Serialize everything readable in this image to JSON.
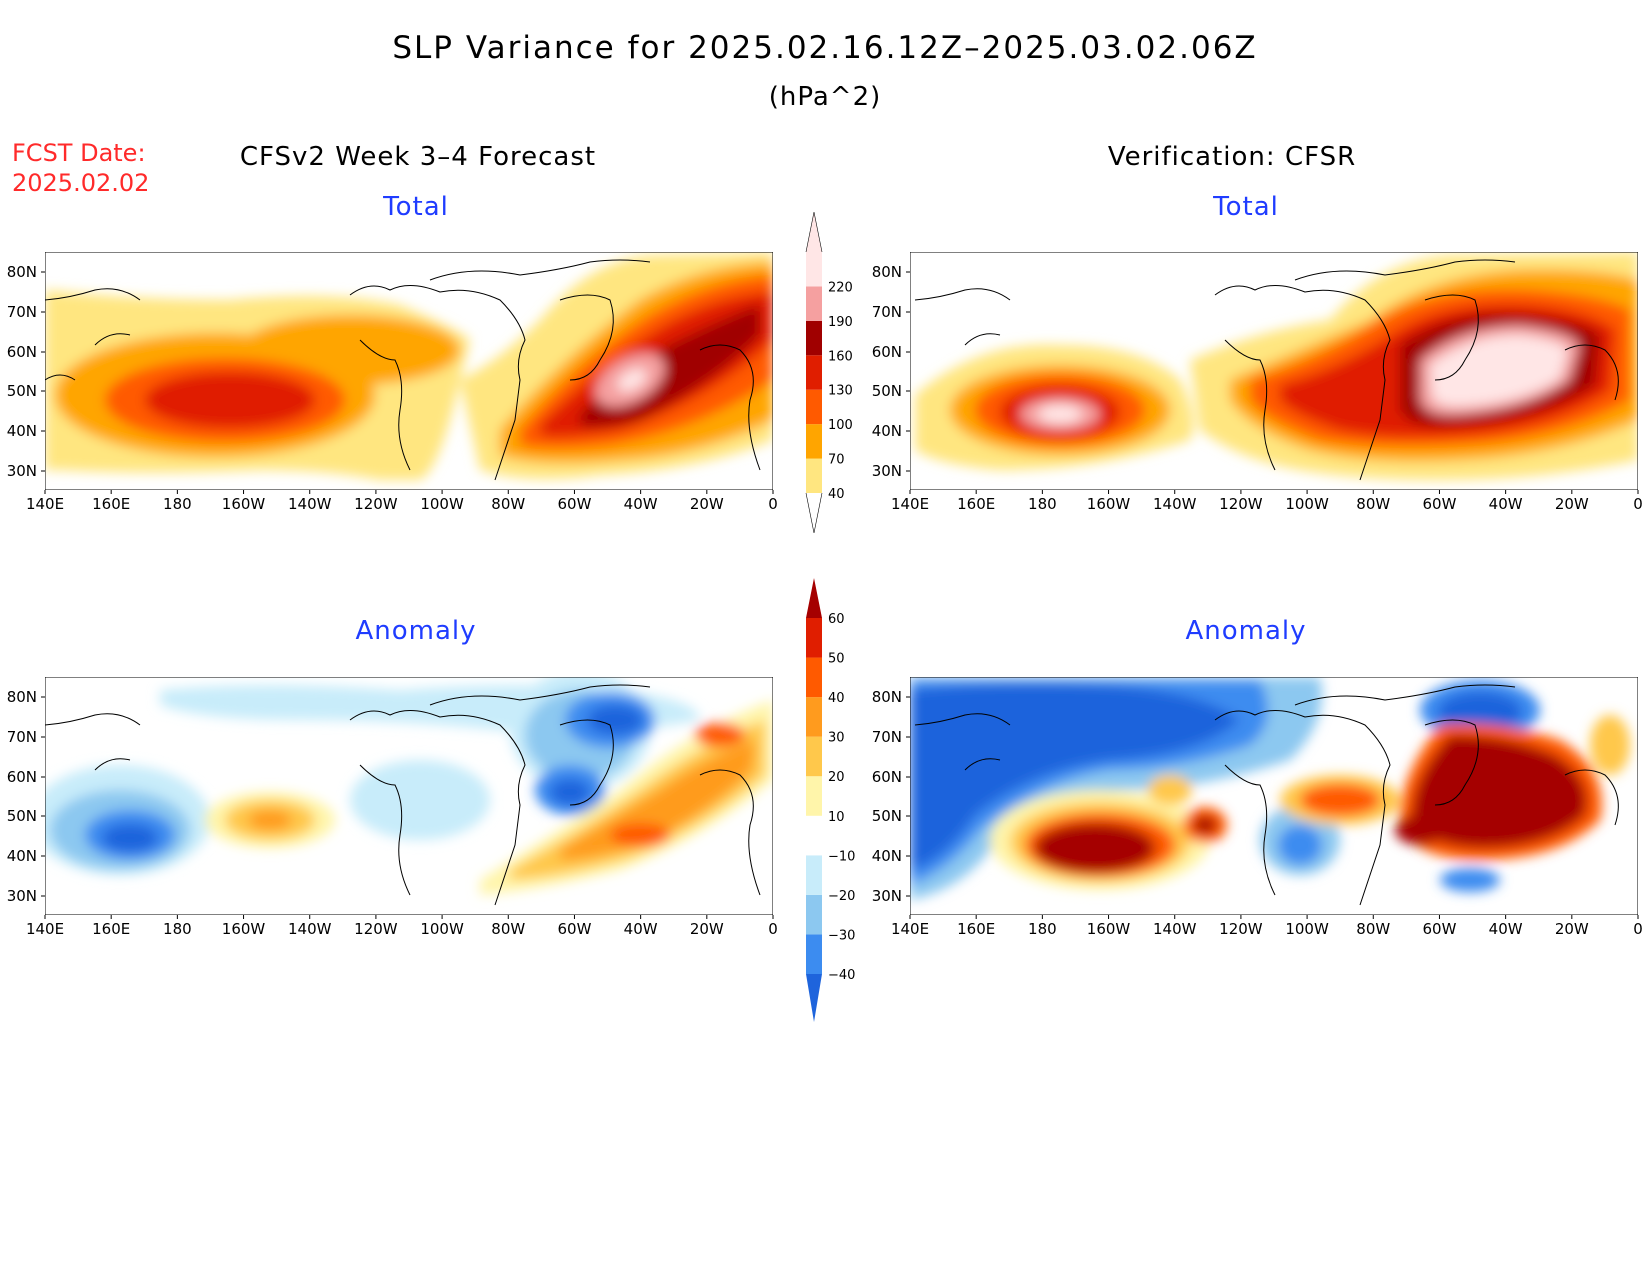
{
  "header": {
    "title": "SLP Variance for 2025.02.16.12Z–2025.03.02.06Z",
    "units": "(hPa^2)",
    "fcst_label": "FCST Date:",
    "fcst_date": "2025.02.02"
  },
  "columns": {
    "left": "CFSv2 Week 3–4 Forecast",
    "right": "Verification: CFSR"
  },
  "panels": {
    "total_left": "Total",
    "total_right": "Total",
    "anom_left": "Anomaly",
    "anom_right": "Anomaly"
  },
  "axes": {
    "lat_labels": [
      "80N",
      "70N",
      "60N",
      "50N",
      "40N",
      "30N"
    ],
    "lon_labels": [
      "140E",
      "160E",
      "180",
      "160W",
      "140W",
      "120W",
      "100W",
      "80W",
      "60W",
      "40W",
      "20W",
      "0"
    ]
  },
  "colorbar_total": {
    "levels": [
      40,
      70,
      100,
      130,
      160,
      190,
      220
    ],
    "colors": [
      "#ffe680",
      "#ffa500",
      "#ff5a00",
      "#e01e00",
      "#a00000",
      "#f5a0a0",
      "#ffe6e6"
    ]
  },
  "colorbar_anom": {
    "levels": [
      -40,
      -30,
      -20,
      -10,
      10,
      20,
      30,
      40,
      50,
      60
    ],
    "colors": [
      "#1e64dc",
      "#3c8cf0",
      "#8cc8f0",
      "#c8ecfa",
      "#ffffff",
      "#fff5aa",
      "#ffc84b",
      "#ff9b1e",
      "#ff5a00",
      "#e01e00",
      "#a50000"
    ]
  }
}
